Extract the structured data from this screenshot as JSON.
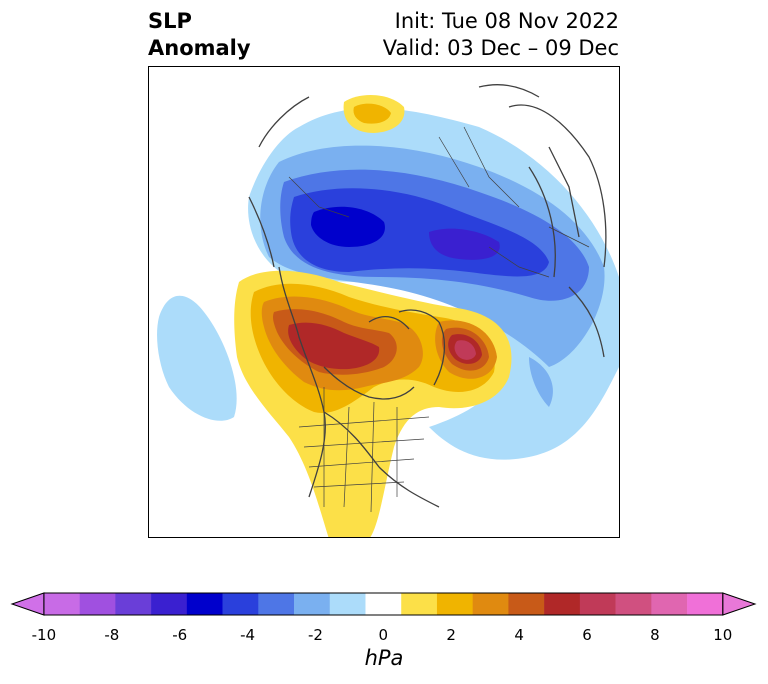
{
  "header": {
    "title_line1": "SLP",
    "title_line2": "Anomaly",
    "init_text": "Init: Tue 08 Nov 2022",
    "valid_text": "Valid: 03 Dec – 09 Dec"
  },
  "colorbar": {
    "units": "hPa",
    "ticks": [
      "-10",
      "-8",
      "-6",
      "-4",
      "-2",
      "0",
      "2",
      "4",
      "6",
      "8",
      "10"
    ],
    "colors": [
      "#c86be6",
      "#a050e0",
      "#6a3ed8",
      "#3a20d0",
      "#0000cc",
      "#2a40dc",
      "#4e76e6",
      "#7ab0f0",
      "#acdcfa",
      "#ffffff",
      "#fce048",
      "#f0b400",
      "#e08a10",
      "#c85a18",
      "#b02828",
      "#c03a58",
      "#d05080",
      "#e066b0",
      "#f070d8"
    ],
    "under_color": "#d070e8",
    "over_color": "#e878d8"
  },
  "legend": {
    "negative_colors": [
      "#acdcfa",
      "#7ab0f0",
      "#4e76e6",
      "#2a40dc",
      "#0000cc"
    ],
    "positive_colors": [
      "#fce048",
      "#f0b400",
      "#e08a10",
      "#c85a18",
      "#b02828",
      "#c03a58"
    ]
  }
}
